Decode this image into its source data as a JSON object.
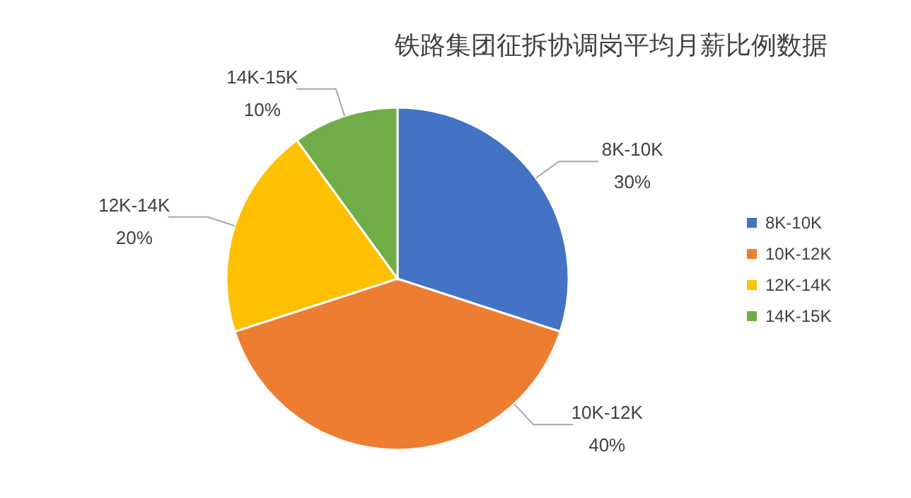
{
  "chart_data": {
    "type": "pie",
    "title": "铁路集团征拆协调岗平均月薪比例数据",
    "categories": [
      "8K-10K",
      "10K-12K",
      "12K-14K",
      "14K-15K"
    ],
    "values": [
      30,
      40,
      20,
      10
    ],
    "value_labels": [
      "30%",
      "40%",
      "20%",
      "10%"
    ],
    "colors": [
      "#4472c4",
      "#ed7d31",
      "#ffc000",
      "#70ad47"
    ],
    "legend": "right"
  }
}
